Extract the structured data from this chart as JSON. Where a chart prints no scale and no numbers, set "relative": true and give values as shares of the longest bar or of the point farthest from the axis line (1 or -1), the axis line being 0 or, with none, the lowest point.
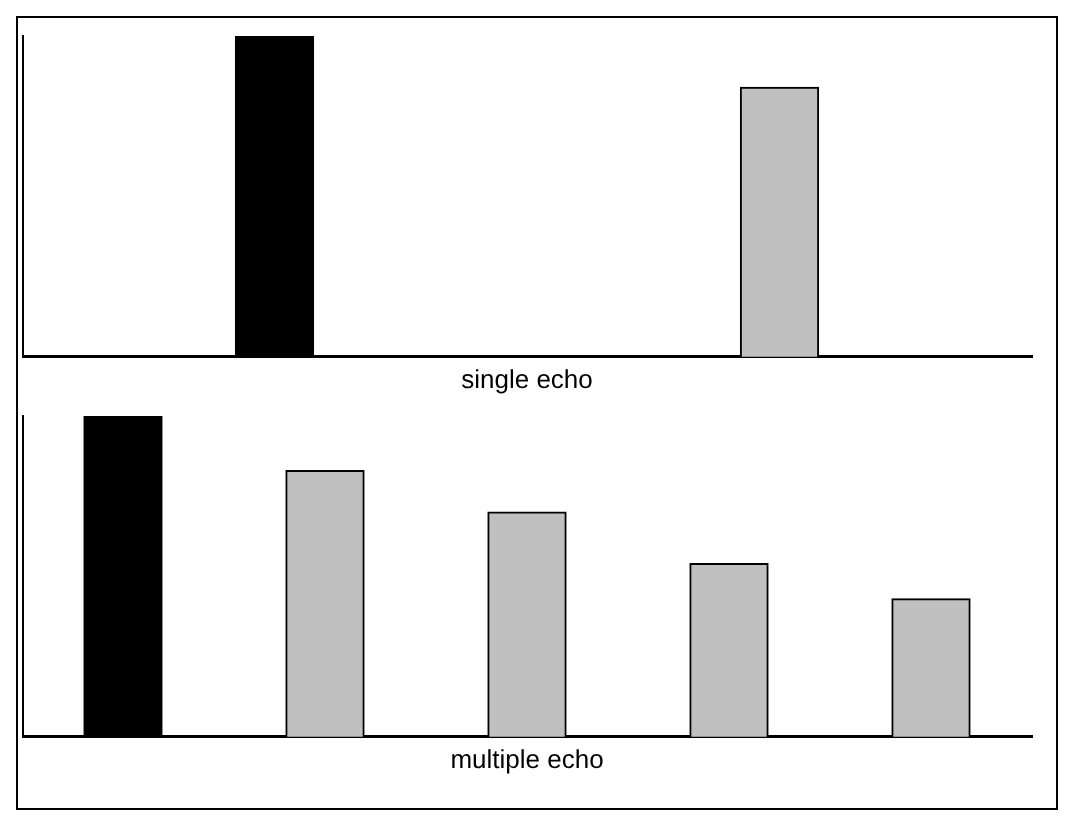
{
  "chart_data": [
    {
      "type": "bar",
      "xlabel": "single echo",
      "relative": true,
      "grid": false,
      "legend": false,
      "categories": [
        null,
        null
      ],
      "values": [
        1,
        0.84
      ],
      "colors": [
        "#000000",
        "#c0c0c0"
      ]
    },
    {
      "type": "bar",
      "xlabel": "multiple echo",
      "relative": true,
      "grid": false,
      "legend": false,
      "categories": [
        null,
        null,
        null,
        null,
        null
      ],
      "values": [
        1,
        0.83,
        0.7,
        0.54,
        0.43
      ],
      "colors": [
        "#000000",
        "#c0c0c0",
        "#c0c0c0",
        "#c0c0c0",
        "#c0c0c0"
      ]
    }
  ]
}
